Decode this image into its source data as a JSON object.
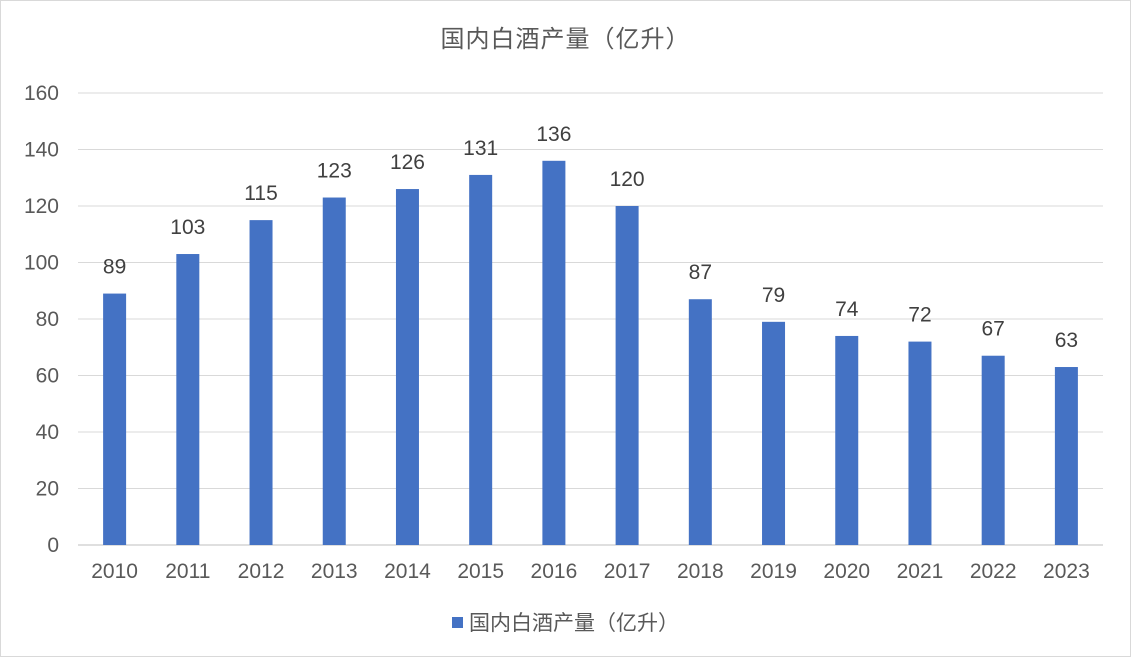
{
  "chart_data": {
    "type": "bar",
    "title": "国内白酒产量（亿升）",
    "xlabel": "",
    "ylabel": "",
    "categories": [
      "2010",
      "2011",
      "2012",
      "2013",
      "2014",
      "2015",
      "2016",
      "2017",
      "2018",
      "2019",
      "2020",
      "2021",
      "2022",
      "2023"
    ],
    "series": [
      {
        "name": "国内白酒产量（亿升）",
        "values": [
          89,
          103,
          115,
          123,
          126,
          131,
          136,
          120,
          87,
          79,
          74,
          72,
          67,
          63
        ],
        "color": "#4472c4"
      }
    ],
    "ylim": [
      0,
      160
    ],
    "yticks": [
      0,
      20,
      40,
      60,
      80,
      100,
      120,
      140,
      160
    ],
    "grid": true,
    "legend_position": "bottom",
    "data_labels": true
  },
  "colors": {
    "bar": "#4472c4",
    "grid": "#d9d9d9",
    "text": "#595959"
  }
}
